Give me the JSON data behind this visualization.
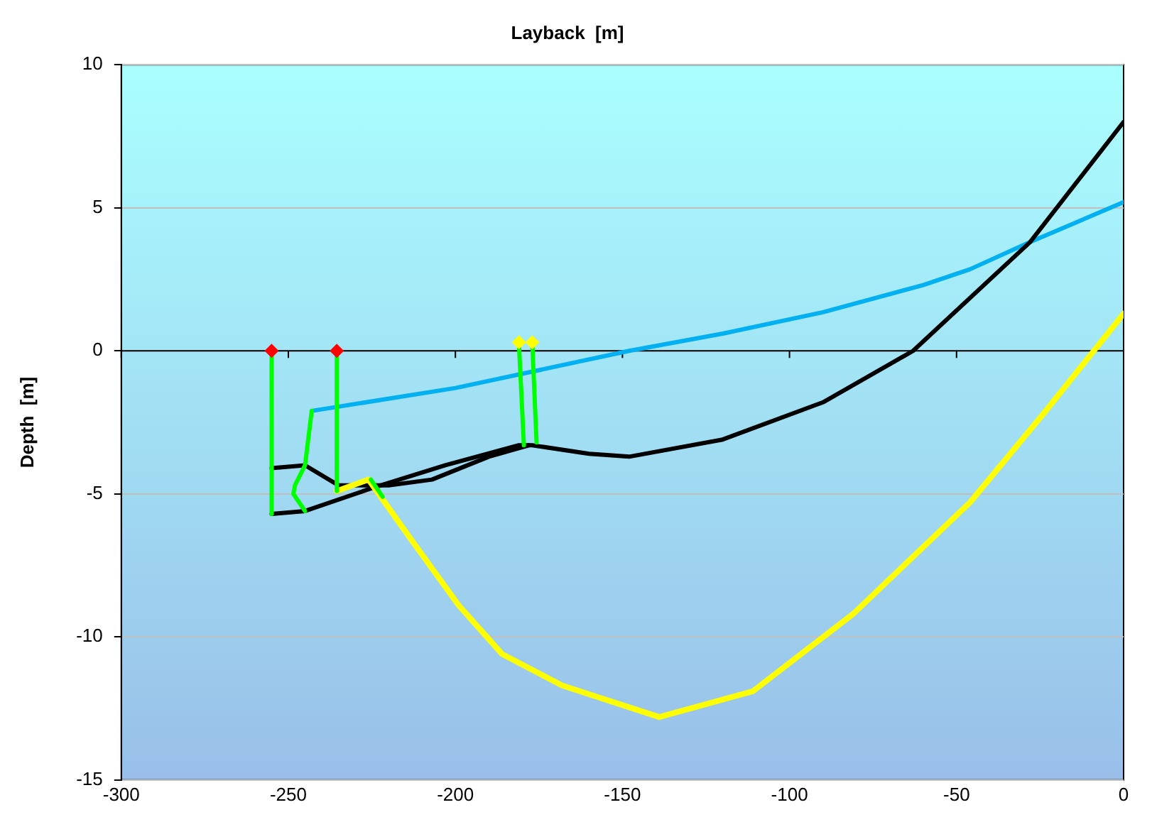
{
  "chart_data": {
    "type": "line",
    "xlabel": "Layback  [m]",
    "ylabel": "Depth  [m]",
    "xlim": [
      -300,
      0
    ],
    "xticks": [
      -300,
      -250,
      -200,
      -150,
      -100,
      -50,
      0
    ],
    "ylim": [
      -15,
      10
    ],
    "yticks": [
      -15,
      -10,
      -5,
      0,
      5,
      10
    ],
    "grid": "y",
    "legend": false,
    "marker": "none",
    "series": [
      {
        "color": "#00b0f0",
        "x": [
          -243,
          -200,
          -148,
          -120,
          -90,
          -60,
          -46,
          -28,
          0
        ],
        "values": [
          -2.1,
          -1.3,
          0,
          0.6,
          1.35,
          2.3,
          2.85,
          3.8,
          5.2
        ]
      },
      {
        "color": "#000000",
        "x": [
          -255,
          -245,
          -235,
          -220,
          -207,
          -190,
          -178
        ],
        "values": [
          -4.1,
          -4.0,
          -4.7,
          -4.7,
          -4.5,
          -3.7,
          -3.3
        ]
      },
      {
        "color": "#000000",
        "x": [
          -255,
          -245,
          -225,
          -203,
          -181,
          -177,
          -160,
          -148,
          -120,
          -90,
          -63,
          -28,
          0
        ],
        "values": [
          -5.7,
          -5.6,
          -4.8,
          -4.0,
          -3.3,
          -3.3,
          -3.6,
          -3.7,
          -3.1,
          -1.8,
          0,
          3.8,
          8.0
        ]
      },
      {
        "color": "#ffff00",
        "x": [
          -235.5,
          -226,
          -212,
          -199,
          -186,
          -168,
          -139,
          -111,
          -81,
          -46,
          -24,
          0
        ],
        "values": [
          -4.9,
          -4.5,
          -6.8,
          -8.9,
          -10.6,
          -11.7,
          -12.8,
          -11.9,
          -9.2,
          -5.3,
          -2.2,
          1.3
        ]
      },
      {
        "color": "#00ff00",
        "x": [
          -255,
          -255
        ],
        "values": [
          0,
          -5.7
        ]
      },
      {
        "color": "#00ff00",
        "x": [
          -235.5,
          -235.5
        ],
        "values": [
          0,
          -4.9
        ]
      },
      {
        "color": "#00ff00",
        "x": [
          -243,
          -245,
          -248,
          -248.5,
          -245
        ],
        "values": [
          -2.1,
          -4.0,
          -4.7,
          -5.0,
          -5.6
        ]
      },
      {
        "color": "#00ff00",
        "x": [
          -225.3,
          -221.8
        ],
        "values": [
          -4.5,
          -5.1
        ]
      },
      {
        "color": "#00ff00",
        "x": [
          -181,
          -179.5
        ],
        "values": [
          0.3,
          -3.3
        ]
      },
      {
        "color": "#00ff00",
        "x": [
          -177,
          -175.7
        ],
        "values": [
          0.3,
          -3.2
        ]
      },
      {
        "type": "scatter",
        "marker": "diamond",
        "colors": [
          "#ff0000",
          "#ff0000"
        ],
        "x": [
          -255,
          -235.5
        ],
        "values": [
          0,
          0
        ]
      },
      {
        "type": "scatter",
        "marker": "diamond",
        "colors": [
          "#ffff00",
          "#ffff00"
        ],
        "x": [
          -181,
          -177
        ],
        "values": [
          0.3,
          0.3
        ]
      }
    ]
  }
}
